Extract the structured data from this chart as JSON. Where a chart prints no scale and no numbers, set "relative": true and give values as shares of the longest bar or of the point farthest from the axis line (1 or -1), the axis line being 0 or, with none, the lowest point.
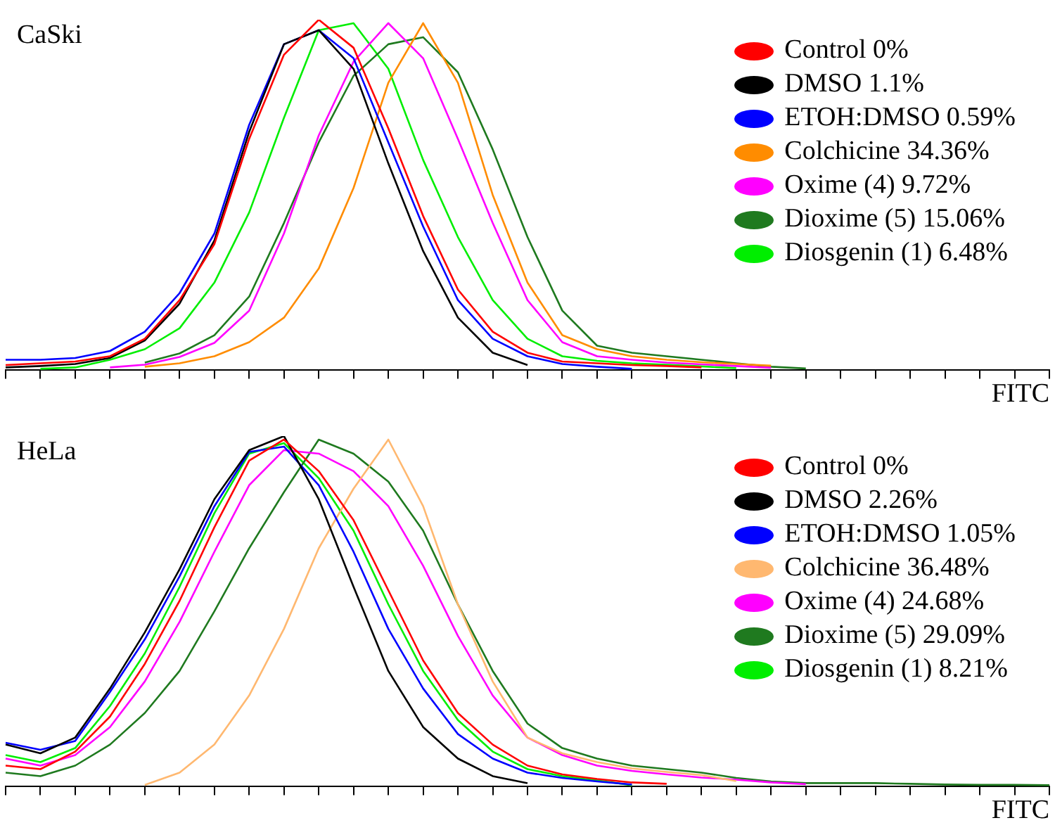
{
  "chart_data": [
    {
      "type": "line",
      "title": "CaSki",
      "xlabel": "FITC",
      "relative": true,
      "legend": "top right",
      "tick_labels": false,
      "categories": [
        null,
        null,
        null,
        null,
        null,
        null,
        null,
        null,
        null,
        null,
        null,
        null,
        null,
        null,
        null,
        null,
        null,
        null,
        null,
        null,
        null,
        null,
        null,
        null,
        null,
        null,
        null,
        null,
        null,
        null,
        null
      ],
      "series": [
        {
          "name": "Control 0%",
          "color": "#ff0000",
          "values": [
            0.015,
            0.02,
            0.025,
            0.04,
            0.09,
            0.2,
            0.36,
            0.66,
            0.9,
            1,
            0.92,
            0.69,
            0.44,
            0.23,
            0.11,
            0.05,
            0.025,
            0.02,
            0.015,
            0.012,
            0.008,
            null,
            null,
            null,
            null,
            null,
            null,
            null,
            null,
            null,
            null
          ]
        },
        {
          "name": "DMSO 1.1%",
          "color": "#000000",
          "values": [
            0.008,
            0.012,
            0.018,
            0.035,
            0.085,
            0.19,
            0.37,
            0.68,
            0.93,
            0.97,
            0.86,
            0.59,
            0.34,
            0.15,
            0.05,
            0.015,
            null,
            null,
            null,
            null,
            null,
            null,
            null,
            null,
            null,
            null,
            null,
            null,
            null,
            null,
            null
          ]
        },
        {
          "name": "ETOH:DMSO 0.59%",
          "color": "#0000ff",
          "values": [
            0.03,
            0.03,
            0.035,
            0.055,
            0.11,
            0.22,
            0.39,
            0.7,
            0.93,
            0.97,
            0.89,
            0.65,
            0.41,
            0.2,
            0.09,
            0.04,
            0.018,
            0.01,
            0.004,
            null,
            null,
            null,
            null,
            null,
            null,
            null,
            null,
            null,
            null,
            null,
            null
          ]
        },
        {
          "name": "Colchicine 34.36%",
          "color": "#ff8c00",
          "values": [
            null,
            null,
            null,
            null,
            0.01,
            0.02,
            0.04,
            0.08,
            0.15,
            0.29,
            0.52,
            0.82,
            0.99,
            0.82,
            0.5,
            0.25,
            0.1,
            0.06,
            0.04,
            0.03,
            0.023,
            0.018,
            0.013,
            null,
            null,
            null,
            null,
            null,
            null,
            null,
            null
          ]
        },
        {
          "name": "Oxime (4) 9.72%",
          "color": "#ff00ff",
          "values": [
            null,
            null,
            null,
            0.008,
            0.016,
            0.038,
            0.078,
            0.17,
            0.39,
            0.67,
            0.88,
            0.99,
            0.89,
            0.66,
            0.42,
            0.2,
            0.08,
            0.04,
            0.03,
            0.022,
            0.017,
            0.012,
            0.007,
            null,
            null,
            null,
            null,
            null,
            null,
            null,
            null
          ]
        },
        {
          "name": "Dioxime (5) 15.06%",
          "color": "#1f7a1f",
          "values": [
            null,
            null,
            null,
            null,
            0.022,
            0.048,
            0.1,
            0.21,
            0.42,
            0.65,
            0.84,
            0.93,
            0.95,
            0.85,
            0.63,
            0.38,
            0.17,
            0.07,
            0.05,
            0.04,
            0.03,
            0.02,
            0.01,
            0.005,
            null,
            null,
            null,
            null,
            null,
            null,
            null
          ]
        },
        {
          "name": "Diosgenin (1) 6.48%",
          "color": "#00ee00",
          "values": [
            null,
            0.004,
            0.008,
            0.03,
            0.06,
            0.12,
            0.25,
            0.45,
            0.72,
            0.97,
            0.99,
            0.86,
            0.6,
            0.38,
            0.2,
            0.09,
            0.04,
            0.027,
            0.02,
            0.016,
            0.011,
            0.006,
            null,
            null,
            null,
            null,
            null,
            null,
            null,
            null,
            null
          ]
        }
      ]
    },
    {
      "type": "line",
      "title": "HeLa",
      "xlabel": "FITC",
      "relative": true,
      "legend": "top right",
      "tick_labels": false,
      "categories": [
        null,
        null,
        null,
        null,
        null,
        null,
        null,
        null,
        null,
        null,
        null,
        null,
        null,
        null,
        null,
        null,
        null,
        null,
        null,
        null,
        null,
        null,
        null,
        null,
        null,
        null,
        null,
        null,
        null,
        null,
        null
      ],
      "series": [
        {
          "name": "Control 0%",
          "color": "#ff0000",
          "values": [
            0.06,
            0.05,
            0.1,
            0.2,
            0.35,
            0.53,
            0.74,
            0.93,
            0.99,
            0.9,
            0.76,
            0.56,
            0.36,
            0.21,
            0.12,
            0.06,
            0.035,
            0.022,
            0.012,
            0.008,
            null,
            null,
            null,
            null,
            null,
            null,
            null,
            null,
            null,
            null,
            null
          ]
        },
        {
          "name": "DMSO 2.26%",
          "color": "#000000",
          "values": [
            0.12,
            0.095,
            0.14,
            0.28,
            0.44,
            0.62,
            0.82,
            0.96,
            1,
            0.82,
            0.57,
            0.33,
            0.17,
            0.08,
            0.03,
            0.01,
            null,
            null,
            null,
            null,
            null,
            null,
            null,
            null,
            null,
            null,
            null,
            null,
            null,
            null,
            null
          ]
        },
        {
          "name": "ETOH:DMSO 1.05%",
          "color": "#0000ff",
          "values": [
            0.125,
            0.105,
            0.13,
            0.27,
            0.42,
            0.6,
            0.8,
            0.955,
            0.97,
            0.86,
            0.67,
            0.45,
            0.28,
            0.15,
            0.08,
            0.04,
            0.025,
            0.015,
            0.006,
            null,
            null,
            null,
            null,
            null,
            null,
            null,
            null,
            null,
            null,
            null,
            null
          ]
        },
        {
          "name": "Colchicine 36.48%",
          "color": "#ffb870",
          "values": [
            null,
            null,
            null,
            null,
            0.005,
            0.04,
            0.12,
            0.26,
            0.45,
            0.68,
            0.85,
            0.99,
            0.8,
            0.52,
            0.3,
            0.14,
            0.095,
            0.07,
            0.052,
            0.042,
            0.033,
            0.016,
            null,
            null,
            null,
            null,
            null,
            null,
            null,
            null,
            null
          ]
        },
        {
          "name": "Oxime (4) 24.68%",
          "color": "#ff00ff",
          "values": [
            0.08,
            0.06,
            0.09,
            0.17,
            0.3,
            0.47,
            0.67,
            0.86,
            0.96,
            0.95,
            0.9,
            0.8,
            0.63,
            0.43,
            0.26,
            0.14,
            0.09,
            0.06,
            0.045,
            0.035,
            0.026,
            0.02,
            0.012,
            0.007,
            null,
            null,
            null,
            null,
            null,
            null,
            null
          ]
        },
        {
          "name": "Dioxime (5) 29.09%",
          "color": "#1f7a1f",
          "values": [
            0.04,
            0.03,
            0.06,
            0.12,
            0.21,
            0.33,
            0.5,
            0.68,
            0.84,
            0.99,
            0.95,
            0.87,
            0.73,
            0.52,
            0.33,
            0.18,
            0.11,
            0.08,
            0.06,
            0.05,
            0.04,
            0.025,
            0.015,
            0.01,
            0.01,
            0.01,
            0.008,
            0.006,
            0.005,
            0.005,
            0.004
          ]
        },
        {
          "name": "Diosgenin (1) 8.21%",
          "color": "#00ee00",
          "values": [
            0.09,
            0.07,
            0.11,
            0.23,
            0.38,
            0.57,
            0.78,
            0.95,
            0.98,
            0.88,
            0.73,
            0.52,
            0.33,
            0.19,
            0.1,
            0.05,
            0.03,
            0.018,
            0.004,
            null,
            null,
            null,
            null,
            null,
            null,
            null,
            null,
            null,
            null,
            null,
            null
          ]
        }
      ]
    }
  ]
}
